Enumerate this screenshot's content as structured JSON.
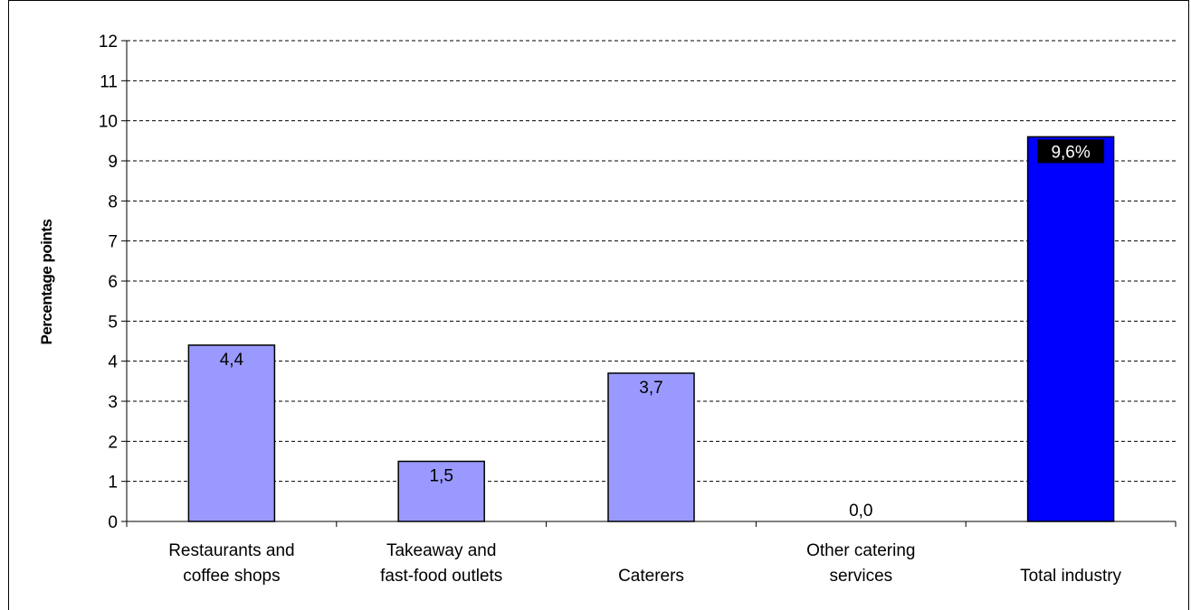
{
  "chart_data": {
    "type": "bar",
    "title": "",
    "xlabel": "",
    "ylabel": "Percentage points",
    "ylim": [
      0,
      12
    ],
    "yticks": [
      0,
      1,
      2,
      3,
      4,
      5,
      6,
      7,
      8,
      9,
      10,
      11,
      12
    ],
    "grid": "horizontal-dashed",
    "categories": [
      [
        "Restaurants and",
        "coffee shops"
      ],
      [
        "Takeaway and",
        "fast-food outlets"
      ],
      [
        "Caterers"
      ],
      [
        "Other catering",
        "services"
      ],
      [
        "Total industry"
      ]
    ],
    "values": [
      4.4,
      1.5,
      3.7,
      0.0,
      9.6
    ],
    "data_labels": [
      "4,4",
      "1,5",
      "3,7",
      "0,0",
      "9,6%"
    ],
    "colors": {
      "component_bar": "#9999ff",
      "total_bar": "#0000ff",
      "grid": "#000000",
      "total_label_bg": "#000000",
      "total_label_text": "#ffffff"
    }
  }
}
